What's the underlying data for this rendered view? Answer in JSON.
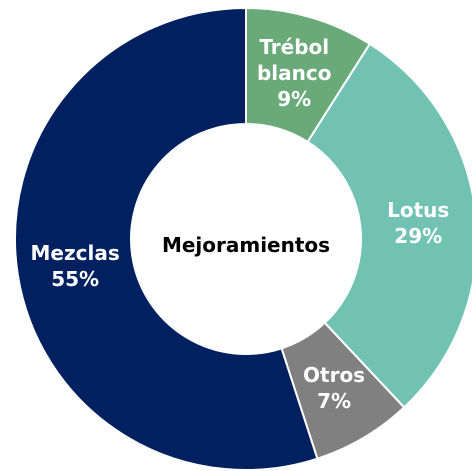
{
  "chart_data": {
    "type": "donut",
    "center_label": "Mejoramientos",
    "categories": [
      "Trébol blanco",
      "Lotus",
      "Otros",
      "Mezclas"
    ],
    "values": [
      9,
      29,
      7,
      55
    ],
    "value_labels": [
      "9%",
      "29%",
      "7%",
      "55%"
    ],
    "colors": [
      "#6aaa78",
      "#72c2b4",
      "#808080",
      "#002060"
    ]
  }
}
